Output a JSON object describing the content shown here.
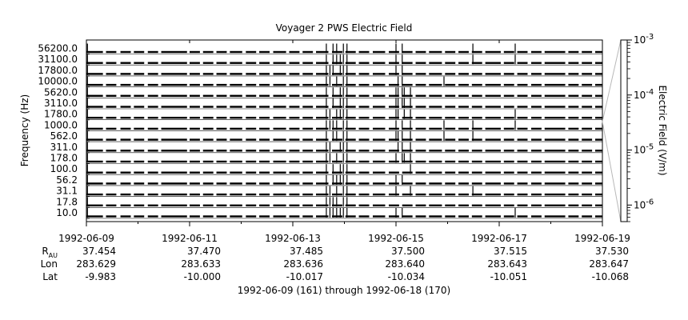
{
  "chart_data": {
    "type": "line",
    "title": "Voyager 2 PWS Electric Field",
    "ylabel": "Frequency (Hz)",
    "colorbar_label": "Electric Field (V/m)",
    "colorbar_scale": "log",
    "colorbar_ticks": [
      {
        "value": 0.001,
        "mant": "10",
        "exp": "-3"
      },
      {
        "value": 0.0001,
        "mant": "10",
        "exp": "-4"
      },
      {
        "value": 1e-05,
        "mant": "10",
        "exp": "-5"
      },
      {
        "value": 1e-06,
        "mant": "10",
        "exp": "-6"
      }
    ],
    "channels": [
      "56200.0",
      "31100.0",
      "17800.0",
      "10000.0",
      "5620.0",
      "3110.0",
      "1780.0",
      "1000.0",
      "562.0",
      "311.0",
      "178.0",
      "100.0",
      "56.2",
      "31.1",
      "17.8",
      "10.0"
    ],
    "channel_hz": [
      56200,
      31100,
      17800,
      10000,
      5620,
      3110,
      1780,
      1000,
      562,
      311,
      178,
      100,
      56.2,
      31.1,
      17.8,
      10.0
    ],
    "x_range": [
      "1992-06-09",
      "1992-06-19"
    ],
    "x_ticks": [
      "1992-06-09",
      "1992-06-11",
      "1992-06-13",
      "1992-06-15",
      "1992-06-17",
      "1992-06-19"
    ],
    "ephemeris": {
      "row_labels": {
        "rau_main": "R",
        "rau_sub": "AU",
        "lon": "Lon",
        "lat": "Lat"
      },
      "columns": [
        {
          "rau": "37.454",
          "lon": "283.629",
          "lat": "-9.983"
        },
        {
          "rau": "37.470",
          "lon": "283.633",
          "lat": "-10.000"
        },
        {
          "rau": "37.485",
          "lon": "283.636",
          "lat": "-10.017"
        },
        {
          "rau": "37.500",
          "lon": "283.640",
          "lat": "-10.034"
        },
        {
          "rau": "37.515",
          "lon": "283.643",
          "lat": "-10.051"
        },
        {
          "rau": "37.530",
          "lon": "283.647",
          "lat": "-10.068"
        }
      ]
    },
    "footer": "1992-06-09 (161) through 1992-06-18 (170)",
    "data_segments_days": [
      [
        0.0,
        0.32
      ],
      [
        0.38,
        0.58
      ],
      [
        0.66,
        0.86
      ],
      [
        0.92,
        1.12
      ],
      [
        1.19,
        1.39
      ],
      [
        1.45,
        1.95
      ],
      [
        2.0,
        2.2
      ],
      [
        2.26,
        2.46
      ],
      [
        2.52,
        2.72
      ],
      [
        2.78,
        3.02
      ],
      [
        3.09,
        3.29
      ],
      [
        3.35,
        3.55
      ],
      [
        3.62,
        3.87
      ],
      [
        3.93,
        4.13
      ],
      [
        4.19,
        4.39
      ],
      [
        4.45,
        4.69
      ],
      [
        4.76,
        4.96
      ],
      [
        5.02,
        5.22
      ],
      [
        5.28,
        5.48
      ],
      [
        5.55,
        5.79
      ],
      [
        5.86,
        6.06
      ],
      [
        6.12,
        6.32
      ],
      [
        6.38,
        6.58
      ],
      [
        6.64,
        6.89
      ],
      [
        6.95,
        7.15
      ],
      [
        7.21,
        7.41
      ],
      [
        7.47,
        7.67
      ],
      [
        7.73,
        8.03
      ],
      [
        8.09,
        8.29
      ],
      [
        8.35,
        8.55
      ],
      [
        8.62,
        8.82
      ],
      [
        8.88,
        9.28
      ],
      [
        9.34,
        9.54
      ],
      [
        9.6,
        9.8
      ],
      [
        9.86,
        10.0
      ]
    ],
    "bursts_days": [
      {
        "day": 0.02,
        "chans": [
          0,
          1,
          2,
          3,
          4,
          5,
          6,
          7,
          8,
          9,
          10,
          11,
          12,
          13,
          14,
          15
        ]
      },
      {
        "day": 4.65,
        "chans": [
          0,
          1,
          2,
          3,
          4,
          5,
          6,
          7,
          8,
          9,
          10,
          11,
          12,
          13,
          14,
          15
        ]
      },
      {
        "day": 4.72,
        "chans": [
          2,
          3,
          6,
          7,
          9,
          10,
          13,
          14,
          15
        ]
      },
      {
        "day": 4.78,
        "chans": [
          0,
          1,
          2,
          4,
          5,
          7,
          8,
          11,
          12,
          14,
          15
        ]
      },
      {
        "day": 4.85,
        "chans": [
          0,
          1,
          3,
          6,
          7,
          8,
          10,
          12,
          13,
          14,
          15
        ]
      },
      {
        "day": 4.92,
        "chans": [
          1,
          2,
          4,
          5,
          6,
          9,
          11,
          12,
          15
        ]
      },
      {
        "day": 4.98,
        "chans": [
          0,
          1,
          2,
          3,
          4,
          5,
          6,
          7,
          8,
          9,
          10,
          11,
          12,
          13,
          14,
          15
        ]
      },
      {
        "day": 5.05,
        "chans": [
          0,
          1,
          2,
          3,
          4,
          5,
          6,
          7,
          8,
          9,
          10,
          11,
          12,
          13,
          14,
          15
        ]
      },
      {
        "day": 6.0,
        "chans": [
          0,
          1,
          2,
          4,
          5,
          6,
          7,
          8,
          10,
          12,
          13,
          15
        ]
      },
      {
        "day": 6.04,
        "chans": [
          3,
          4,
          5,
          6,
          8,
          9
        ]
      },
      {
        "day": 6.12,
        "chans": [
          0,
          1,
          2,
          3,
          4,
          5,
          7,
          8,
          9,
          10,
          12,
          15
        ]
      },
      {
        "day": 6.16,
        "chans": [
          4,
          5,
          6,
          10
        ]
      },
      {
        "day": 6.28,
        "chans": [
          4,
          5,
          6,
          7,
          8,
          9,
          10,
          11,
          13
        ]
      },
      {
        "day": 6.93,
        "chans": [
          3,
          7,
          8
        ]
      },
      {
        "day": 7.49,
        "chans": [
          0,
          1,
          7,
          8,
          13
        ]
      },
      {
        "day": 8.31,
        "chans": [
          0,
          1,
          6,
          7,
          15
        ]
      }
    ]
  }
}
